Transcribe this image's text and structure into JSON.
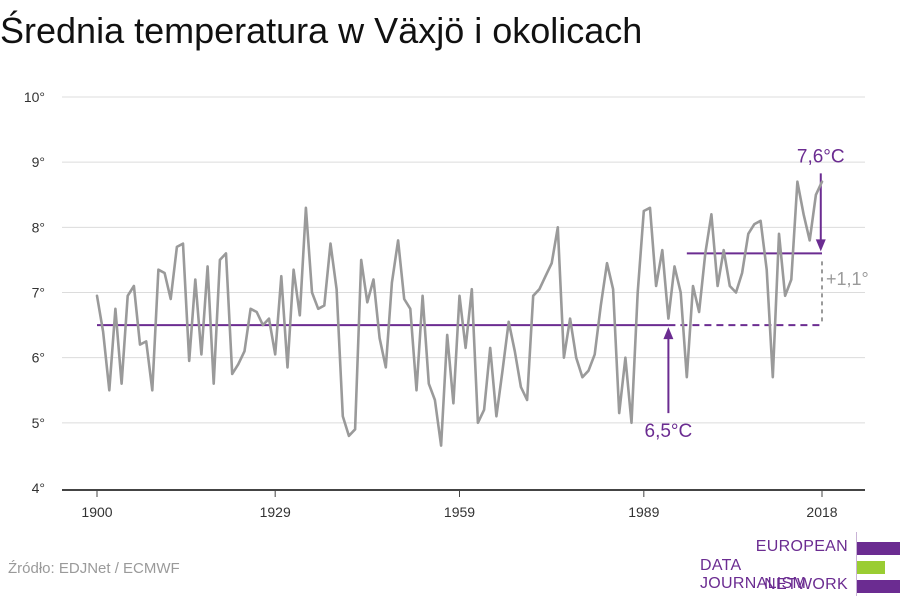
{
  "title": "Średnia temperatura w Växjö i okolicach",
  "source": "Źródło: EDJNet / ECMWF",
  "logo": {
    "line1": "EUROPEAN",
    "line2": "DATA JOURNALISM",
    "line3": "NETWORK",
    "colors": {
      "purple": "#6b2c91",
      "green": "#9acd32"
    }
  },
  "colors": {
    "series": "#9a9a9a",
    "accent": "#6b2c91",
    "grid": "#dcdcdc"
  },
  "chart_data": {
    "type": "line",
    "title": "Średnia temperatura w Växjö i okolicach",
    "xlabel": "",
    "ylabel": "",
    "xlim": [
      1900,
      2018
    ],
    "ylim": [
      4,
      10
    ],
    "xticks": [
      1900,
      1929,
      1959,
      1989,
      2018
    ],
    "xtick_labels": [
      "1900",
      "1929",
      "1959",
      "1989",
      "2018"
    ],
    "yticks": [
      4,
      5,
      6,
      7,
      8,
      9,
      10
    ],
    "ytick_labels": [
      "4°",
      "5°",
      "6°",
      "7°",
      "8°",
      "9°",
      "10°"
    ],
    "grid": true,
    "series": [
      {
        "x": [
          1900,
          1901,
          1902,
          1903,
          1904,
          1905,
          1906,
          1907,
          1908,
          1909,
          1910,
          1911,
          1912,
          1913,
          1914,
          1915,
          1916,
          1917,
          1918,
          1919,
          1920,
          1921,
          1922,
          1923,
          1924,
          1925,
          1926,
          1927,
          1928,
          1929,
          1930,
          1931,
          1932,
          1933,
          1934,
          1935,
          1936,
          1937,
          1938,
          1939,
          1940,
          1941,
          1942,
          1943,
          1944,
          1945,
          1946,
          1947,
          1948,
          1949,
          1950,
          1951,
          1952,
          1953,
          1954,
          1955,
          1956,
          1957,
          1958,
          1959,
          1960,
          1961,
          1962,
          1963,
          1964,
          1965,
          1966,
          1967,
          1968,
          1969,
          1970,
          1971,
          1972,
          1973,
          1974,
          1975,
          1976,
          1977,
          1978,
          1979,
          1980,
          1981,
          1982,
          1983,
          1984,
          1985,
          1986,
          1987,
          1988,
          1989,
          1990,
          1991,
          1992,
          1993,
          1994,
          1995,
          1996,
          1997,
          1998,
          1999,
          2000,
          2001,
          2002,
          2003,
          2004,
          2005,
          2006,
          2007,
          2008,
          2009,
          2010,
          2011,
          2012,
          2013,
          2014,
          2015,
          2016,
          2017,
          2018
        ],
        "values": [
          6.95,
          6.4,
          5.5,
          6.75,
          5.6,
          6.95,
          7.1,
          6.2,
          6.25,
          5.5,
          7.35,
          7.3,
          6.9,
          7.7,
          7.75,
          5.95,
          7.2,
          6.05,
          7.4,
          5.6,
          7.5,
          7.6,
          5.75,
          5.9,
          6.1,
          6.75,
          6.7,
          6.5,
          6.6,
          6.05,
          7.25,
          5.85,
          7.35,
          6.65,
          8.3,
          7.0,
          6.75,
          6.8,
          7.75,
          7.05,
          5.1,
          4.8,
          4.9,
          7.5,
          6.85,
          7.2,
          6.3,
          5.85,
          7.15,
          7.8,
          6.9,
          6.75,
          5.5,
          6.95,
          5.6,
          5.35,
          4.65,
          6.35,
          5.3,
          6.95,
          6.15,
          7.05,
          5.0,
          5.2,
          6.15,
          5.1,
          5.8,
          6.55,
          6.1,
          5.55,
          5.35,
          6.95,
          7.05,
          7.25,
          7.45,
          8.0,
          6.0,
          6.6,
          6.0,
          5.7,
          5.8,
          6.05,
          6.8,
          7.45,
          7.05,
          5.15,
          6.0,
          5.0,
          7.0,
          8.25,
          8.3,
          7.1,
          7.65,
          6.6,
          7.4,
          7.0,
          5.7,
          7.1,
          6.7,
          7.6,
          8.2,
          7.1,
          7.65,
          7.1,
          7.0,
          7.3,
          7.9,
          8.05,
          8.1,
          7.35,
          5.7,
          7.9,
          6.95,
          7.2,
          8.7,
          8.2,
          7.8,
          8.5,
          8.7
        ]
      }
    ],
    "annotations": {
      "baseline_value": 6.5,
      "baseline_label": "6,5°C",
      "recent_value": 7.6,
      "recent_label": "7,6°C",
      "recent_from": 1996,
      "difference_label": "+1,1°"
    }
  }
}
